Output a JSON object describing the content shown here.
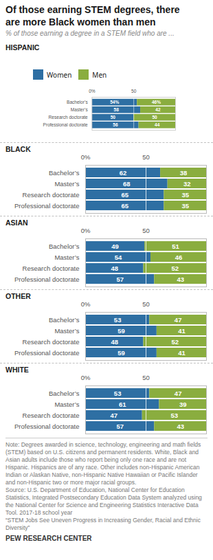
{
  "chart_data": {
    "type": "bar",
    "orientation": "horizontal",
    "stacked": true,
    "data_labels": true,
    "legend": "top",
    "title": "Of those earning STEM degrees, there\nare more Black women than men",
    "subtitle": "% of those earning a degree in a STEM field who are ...",
    "xlim": [
      0,
      100
    ],
    "xticks": [
      {
        "value": 0,
        "label": "0%"
      },
      50
    ],
    "groups": [
      {
        "label": "HISPANIC",
        "categories": [
          "Bachelor’s",
          "Master’s",
          "Research doctorate",
          "Professional doctorate"
        ],
        "series": [
          {
            "name": "Women",
            "color": "#2e6fa3",
            "values": [
              54,
              58,
              50,
              56
            ],
            "value_labels": [
              "54%",
              "58",
              "50",
              "56"
            ]
          },
          {
            "name": "Men",
            "color": "#8aad3f",
            "values": [
              46,
              42,
              50,
              44
            ],
            "value_labels": [
              "46%",
              "42",
              "50",
              "44"
            ]
          }
        ]
      },
      {
        "label": "BLACK",
        "categories": [
          "Bachelor’s",
          "Master’s",
          "Research doctorate",
          "Professional doctorate"
        ],
        "series": [
          {
            "name": "Women",
            "color": "#2e6fa3",
            "values": [
              62,
              68,
              65,
              65
            ]
          },
          {
            "name": "Men",
            "color": "#8aad3f",
            "values": [
              38,
              32,
              35,
              35
            ]
          }
        ]
      },
      {
        "label": "ASIAN",
        "categories": [
          "Bachelor’s",
          "Master’s",
          "Research doctorate",
          "Professional doctorate"
        ],
        "series": [
          {
            "name": "Women",
            "color": "#2e6fa3",
            "values": [
              49,
              54,
              48,
              57
            ]
          },
          {
            "name": "Men",
            "color": "#8aad3f",
            "values": [
              51,
              46,
              52,
              43
            ]
          }
        ]
      },
      {
        "label": "OTHER",
        "categories": [
          "Bachelor’s",
          "Master’s",
          "Research doctorate",
          "Professional doctorate"
        ],
        "series": [
          {
            "name": "Women",
            "color": "#2e6fa3",
            "values": [
              53,
              59,
              48,
              59
            ]
          },
          {
            "name": "Men",
            "color": "#8aad3f",
            "values": [
              47,
              41,
              52,
              41
            ]
          }
        ]
      },
      {
        "label": "WHITE",
        "categories": [
          "Bachelor’s",
          "Master’s",
          "Research doctorate",
          "Professional doctorate"
        ],
        "series": [
          {
            "name": "Women",
            "color": "#2e6fa3",
            "values": [
              53,
              61,
              47,
              57
            ]
          },
          {
            "name": "Men",
            "color": "#8aad3f",
            "values": [
              47,
              39,
              53,
              43
            ]
          }
        ]
      }
    ],
    "note": "Note: Degrees awarded in science, technology, engineering and math fields (STEM) based on U.S. citizens and permanent residents. White, Black and Asian adults include those who report being only one race and are not Hispanic. Hispanics are of any race. Other includes non-Hispanic American Indian or Alaskan Native, non-Hispanic Native Hawaiian or Pacific Islander and non-Hispanic two or more major racial groups.\nSource: U.S. Department of Education, National Center for Education Statistics, Integrated Postsecondary Education Data System analyzed using the National Center for Science and Engineering Statistics Interactive Data Tool. 2017-18 school year\n“STEM Jobs See Uneven Progress in Increasing Gender, Racial and Ethnic Diversity”",
    "footer": "PEW RESEARCH CENTER"
  }
}
